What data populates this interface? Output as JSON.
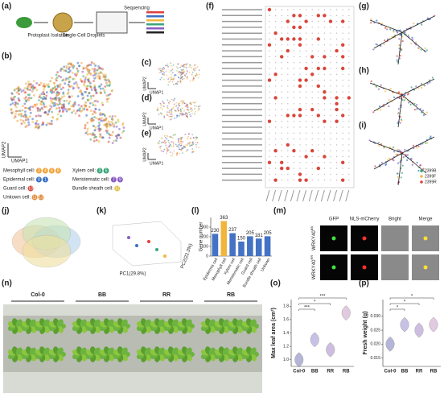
{
  "a": {
    "label": "(a)",
    "steps": [
      "Protoplast Isolation",
      "Single-Cell Droplets",
      "Sequencing"
    ]
  },
  "b": {
    "label": "(b)",
    "x_axis": "UMAP1",
    "y_axis": "UMAP2",
    "legend": [
      {
        "name": "Mesophyll cell:",
        "clusters": [
          "2",
          "4",
          "6",
          "8"
        ],
        "color": "#f2a33a"
      },
      {
        "name": "Xylem cell:",
        "clusters": [
          "3",
          "5"
        ],
        "color": "#3aa57a"
      },
      {
        "name": "Epidermal cell:",
        "clusters": [
          "0",
          "1"
        ],
        "color": "#3b6fc4"
      },
      {
        "name": "Meristematic cell:",
        "clusters": [
          "7",
          "9"
        ],
        "color": "#8a5cc4"
      },
      {
        "name": "Guard cell:",
        "clusters": [
          "10"
        ],
        "color": "#d9453a"
      },
      {
        "name": "Bundle sheath cell:",
        "clusters": [
          "12"
        ],
        "color": "#e0c040"
      },
      {
        "name": "Unkown cell:",
        "clusters": [
          "11",
          "13"
        ],
        "color": "#e08a3a"
      }
    ]
  },
  "c": {
    "label": "(c)",
    "x_axis": "UMAP1",
    "y_axis": "UMAP2"
  },
  "d": {
    "label": "(d)",
    "x_axis": "UMAP1",
    "y_axis": "UMAP2"
  },
  "e": {
    "label": "(e)",
    "x_axis": "UMAP1",
    "y_axis": "UMAP2"
  },
  "f": {
    "label": "(f)"
  },
  "g": {
    "label": "(g)"
  },
  "h": {
    "label": "(h)"
  },
  "i": {
    "label": "(i)",
    "legend": [
      "2399B",
      "2399F",
      "2399R"
    ]
  },
  "j": {
    "label": "(j)"
  },
  "k": {
    "label": "(k)",
    "x_axis": "PC1(29.8%)",
    "y_axis": "PC2(22.3%)"
  },
  "l": {
    "label": "(l)",
    "chart": {
      "type": "bar",
      "y_axis": "Gene number",
      "categories": [
        "Epidermis cell",
        "Mesophyll cell",
        "Xylem cell",
        "Meristematic cell",
        "Guard cell",
        "Bundle sheath cell",
        "Unkown"
      ],
      "values": [
        230,
        363,
        237,
        150,
        205,
        181,
        205
      ],
      "colors": [
        "#4472c4",
        "#f0b63c",
        "#4472c4",
        "#4472c4",
        "#4472c4",
        "#4472c4",
        "#4472c4"
      ],
      "ylim": [
        0,
        400
      ],
      "yticks": [
        0,
        100,
        200,
        300
      ]
    }
  },
  "m": {
    "label": "(m)",
    "columns": [
      "GFP",
      "NLS-mCherry",
      "Bright",
      "Merge"
    ],
    "rows": [
      {
        "gene": "WRKY40",
        "allele": "BB"
      },
      {
        "gene": "WRKY40",
        "allele": "RR"
      }
    ]
  },
  "n": {
    "label": "(n)",
    "groups": [
      "Col-0",
      "BB",
      "RR",
      "RB"
    ]
  },
  "o": {
    "label": "(o)",
    "chart": {
      "type": "violin",
      "y_axis": "Max leaf area (cm²)",
      "categories": [
        "Col-0",
        "BB",
        "RR",
        "RB"
      ],
      "values": [
        1.0,
        1.3,
        1.15,
        1.7
      ],
      "ylim": [
        0.9,
        1.9
      ],
      "yticks": [
        {
          "value": 1,
          "label": "1.0"
        },
        1.2,
        1.4,
        1.6,
        1.8
      ],
      "significance": [
        "***",
        "*",
        "***"
      ]
    }
  },
  "p": {
    "label": "(p)",
    "chart": {
      "type": "violin",
      "y_axis": "Fresh weight (g)",
      "categories": [
        "Col-0",
        "BB",
        "RR",
        "RB"
      ],
      "values": [
        0.02,
        0.027,
        0.025,
        0.027
      ],
      "ylim": [
        0.012,
        0.036
      ],
      "yticks": [
        0.015,
        {
          "value": 0.02,
          "label": "0.020"
        },
        0.025,
        {
          "value": 0.03,
          "label": "0.030"
        }
      ],
      "significance": [
        "*",
        "*",
        "*"
      ]
    }
  }
}
